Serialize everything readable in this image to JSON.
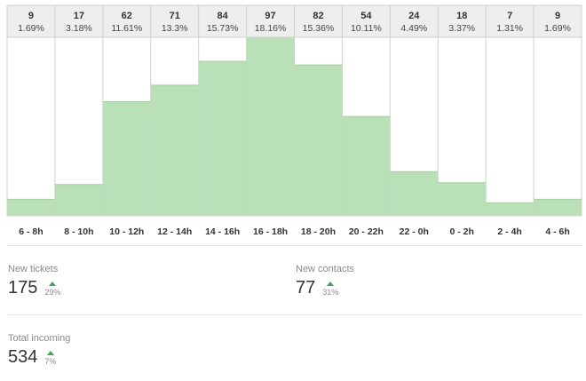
{
  "chart_data": {
    "type": "bar",
    "categories": [
      "6 - 8h",
      "8 - 10h",
      "10 - 12h",
      "12 - 14h",
      "14 - 16h",
      "16 - 18h",
      "18 - 20h",
      "20 - 22h",
      "22 - 0h",
      "0 - 2h",
      "2 - 4h",
      "4 - 6h"
    ],
    "values": [
      9,
      17,
      62,
      71,
      84,
      97,
      82,
      54,
      24,
      18,
      7,
      9
    ],
    "percent_labels": [
      "1.69%",
      "3.18%",
      "11.61%",
      "13.3%",
      "15.73%",
      "18.16%",
      "15.36%",
      "10.11%",
      "4.49%",
      "3.37%",
      "1.31%",
      "1.69%"
    ],
    "ylim": [
      0,
      97
    ],
    "bar_color": "#b9e0b6",
    "bar_edge_color": "#a3cfa0",
    "header_bg": "#eeeeee"
  },
  "metrics": {
    "new_tickets": {
      "label": "New tickets",
      "value": "175",
      "change": "29%",
      "trend": "up"
    },
    "new_contacts": {
      "label": "New contacts",
      "value": "77",
      "change": "31%",
      "trend": "up"
    },
    "total_incoming": {
      "label": "Total incoming",
      "value": "534",
      "change": "7%",
      "trend": "up"
    }
  },
  "trend_color": "#3aa655"
}
